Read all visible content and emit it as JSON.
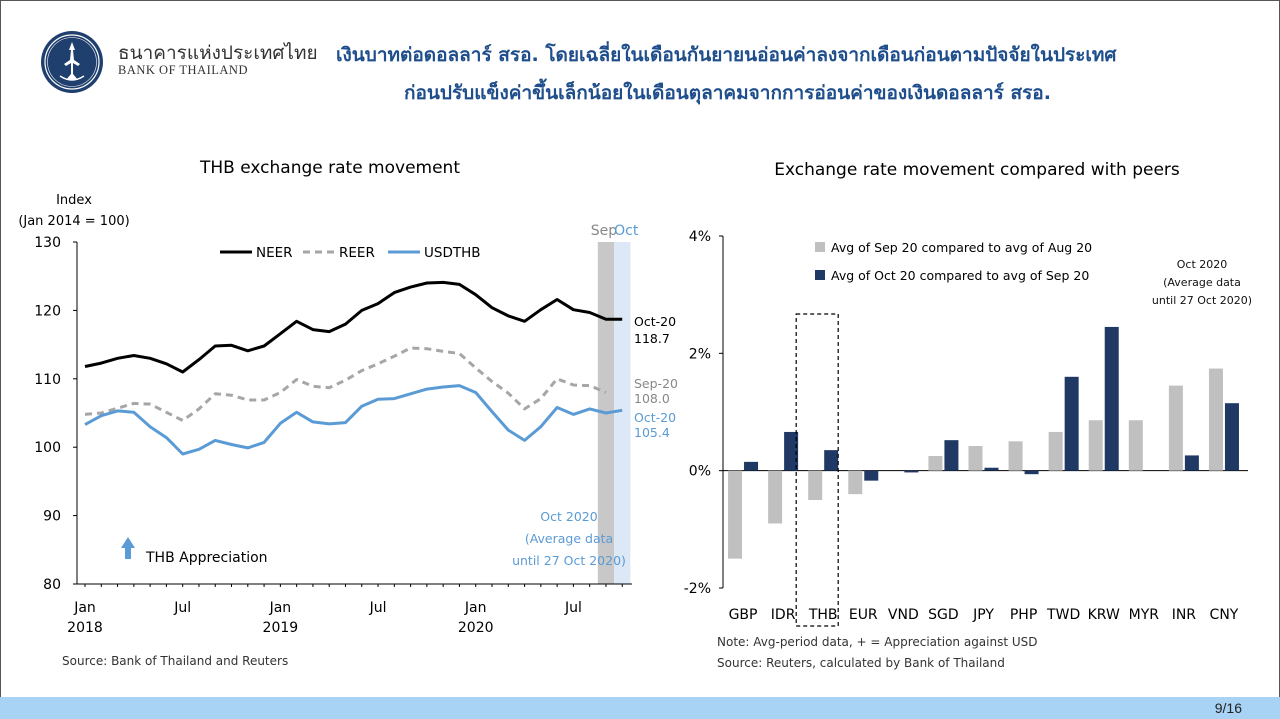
{
  "header": {
    "org_name_th": "ธนาคารแห่งประเทศไทย",
    "org_name_en": "BANK OF THAILAND",
    "headline_line1": "เงินบาทต่อดอลลาร์ สรอ. โดยเฉลี่ยในเดือนกันยายนอ่อนค่าลงจากเดือนก่อนตามปัจจัยในประเทศ",
    "headline_line2": "ก่อนปรับแข็งค่าขึ้นเล็กน้อยในเดือนตุลาคมจากการอ่อนค่าของเงินดอลลาร์ สรอ."
  },
  "footer": {
    "page": "9/16"
  },
  "colors": {
    "neer": "#000000",
    "reer": "#a6a6a6",
    "usdthb": "#5b9bd5",
    "sep_bar": "#c0c0c0",
    "oct_bar": "#1f3864",
    "accent_blue": "#5b9bd5",
    "title_blue": "#1f4e8c",
    "sep_shade": "#c8c8c8",
    "oct_shade": "#dce8f6"
  },
  "chart_data": [
    {
      "type": "line",
      "title": "THB exchange rate movement",
      "ylabel_line1": "Index",
      "ylabel_line2": "(Jan 2014 = 100)",
      "ylim": [
        80,
        130
      ],
      "yticks": [
        "80",
        "90",
        "100",
        "110",
        "120",
        "130"
      ],
      "x": [
        "2018-01",
        "2018-02",
        "2018-03",
        "2018-04",
        "2018-05",
        "2018-06",
        "2018-07",
        "2018-08",
        "2018-09",
        "2018-10",
        "2018-11",
        "2018-12",
        "2019-01",
        "2019-02",
        "2019-03",
        "2019-04",
        "2019-05",
        "2019-06",
        "2019-07",
        "2019-08",
        "2019-09",
        "2019-10",
        "2019-11",
        "2019-12",
        "2020-01",
        "2020-02",
        "2020-03",
        "2020-04",
        "2020-05",
        "2020-06",
        "2020-07",
        "2020-08",
        "2020-09",
        "2020-10"
      ],
      "xtick_labels": [
        {
          "month": "Jan",
          "year": "2018"
        },
        {
          "month": "Jul",
          "year": ""
        },
        {
          "month": "Jan",
          "year": "2019"
        },
        {
          "month": "Jul",
          "year": ""
        },
        {
          "month": "Jan",
          "year": "2020"
        },
        {
          "month": "Jul",
          "year": ""
        }
      ],
      "series": [
        {
          "name": "NEER",
          "style": "solid",
          "values": [
            111.8,
            112.3,
            113.0,
            113.4,
            113.0,
            112.2,
            111.0,
            112.8,
            114.8,
            114.9,
            114.1,
            114.8,
            116.6,
            118.4,
            117.2,
            116.9,
            118.0,
            120.0,
            121.0,
            122.6,
            123.4,
            124.0,
            124.1,
            123.8,
            122.3,
            120.4,
            119.2,
            118.4,
            120.1,
            121.6,
            120.1,
            119.7,
            118.7,
            118.7
          ]
        },
        {
          "name": "REER",
          "style": "dashed",
          "values": [
            104.8,
            105.0,
            105.7,
            106.4,
            106.3,
            105.1,
            103.9,
            105.6,
            107.8,
            107.6,
            106.9,
            106.9,
            108.0,
            109.9,
            108.9,
            108.7,
            109.8,
            111.2,
            112.2,
            113.3,
            114.5,
            114.4,
            114.0,
            113.7,
            111.6,
            109.6,
            107.9,
            105.6,
            107.1,
            110.0,
            109.1,
            109.0,
            108.0,
            null
          ]
        },
        {
          "name": "USDTHB",
          "style": "solid",
          "values": [
            103.3,
            104.6,
            105.3,
            105.1,
            103.0,
            101.4,
            99.0,
            99.7,
            101.0,
            100.4,
            99.9,
            100.7,
            103.5,
            105.1,
            103.7,
            103.4,
            103.6,
            106.0,
            107.0,
            107.1,
            107.8,
            108.5,
            108.8,
            109.0,
            108.0,
            105.2,
            102.5,
            101.0,
            103.0,
            105.8,
            104.8,
            105.6,
            105.0,
            105.4
          ]
        }
      ],
      "shaded_months": [
        {
          "label": "Sep",
          "color": "#c8c8c8"
        },
        {
          "label": "Oct",
          "color": "#dce8f6"
        }
      ],
      "end_labels": [
        {
          "series": "NEER",
          "period": "Oct-20",
          "value": "118.7"
        },
        {
          "series": "REER",
          "period": "Sep-20",
          "value": "108.0"
        },
        {
          "series": "USDTHB",
          "period": "Oct-20",
          "value": "105.4"
        }
      ],
      "annotation_lines": [
        "Oct 2020",
        "(Average data",
        "until 27 Oct 2020)"
      ],
      "arrow_label": "THB Appreciation",
      "source": "Source: Bank of Thailand and Reuters",
      "legend": "top"
    },
    {
      "type": "bar",
      "title": "Exchange rate movement compared with peers",
      "categories": [
        "GBP",
        "IDR",
        "THB",
        "EUR",
        "VND",
        "SGD",
        "JPY",
        "PHP",
        "TWD",
        "KRW",
        "MYR",
        "INR",
        "CNY"
      ],
      "series": [
        {
          "name": "Avg of Sep 20 compared to avg of Aug 20",
          "values": [
            -1.5,
            -0.9,
            -0.5,
            -0.4,
            0.0,
            0.25,
            0.42,
            0.5,
            0.66,
            0.86,
            0.86,
            1.45,
            1.74
          ]
        },
        {
          "name": "Avg of Oct 20 compared to avg of Sep 20",
          "values": [
            0.15,
            0.66,
            0.35,
            -0.17,
            -0.03,
            0.52,
            0.05,
            -0.06,
            1.6,
            2.45,
            0.0,
            0.26,
            1.15
          ]
        }
      ],
      "ylim": [
        -2,
        4
      ],
      "yticks": [
        "-2%",
        "0%",
        "2%",
        "4%"
      ],
      "highlight_category": "THB",
      "annotation_lines": [
        "Oct 2020",
        "(Average data",
        "until 27 Oct 2020)"
      ],
      "note": "Note: Avg-period data, + = Appreciation against USD",
      "source": "Source: Reuters, calculated by Bank of Thailand",
      "legend": "top-left"
    }
  ]
}
